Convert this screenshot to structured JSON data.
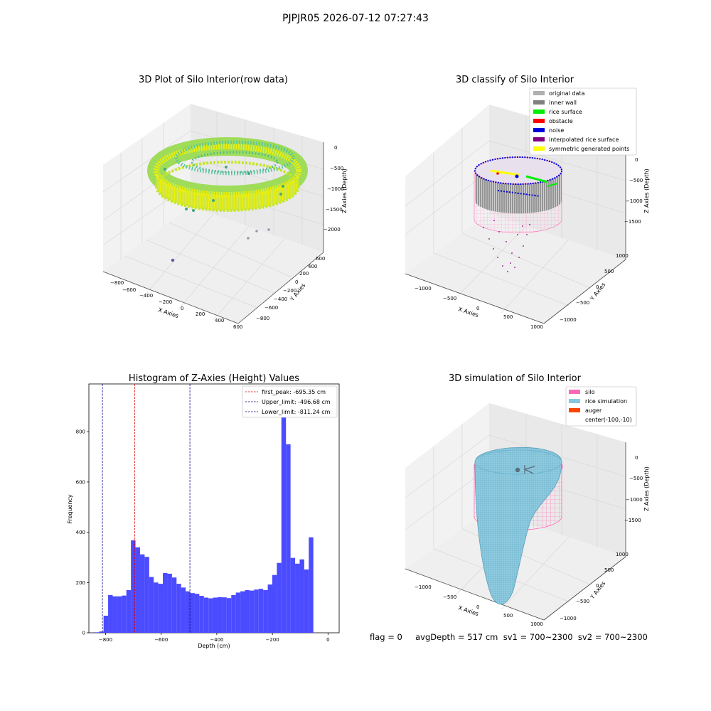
{
  "figure": {
    "suptitle": "PJPJR05 2026-07-12 07:27:43",
    "status_text": "flag = 0     avgDepth = 517 cm  sv1 = 700~2300  sv2 = 700~2300"
  },
  "colors": {
    "hist_bar": "#4b4bff",
    "first_peak": "#dd0000",
    "limits": "#00008b",
    "silo": "#ff69b4",
    "rice_sim": "#87c8e0",
    "auger": "#ff4500",
    "inner_wall": "#808080",
    "rice_surface": "#00ee00",
    "obstacle": "#ff0000",
    "noise": "#0000dd",
    "interpolated": "#800080",
    "symmetric": "#ffff00",
    "original": "#b0b0b0"
  },
  "chart_data": [
    {
      "type": "scatter",
      "title": "3D Plot of Silo Interior(row data)",
      "xlabel": "X Axies",
      "ylabel": "Y Axies",
      "zlabel": "Z Axies (Depth)",
      "x_ticks": [
        "−800",
        "−600",
        "−400",
        "−200",
        "0",
        "200",
        "400",
        "600"
      ],
      "y_ticks": [
        "600",
        "400",
        "200",
        "0",
        "−200",
        "−400",
        "−600",
        "−800"
      ],
      "z_ticks": [
        "0",
        "−500",
        "−1000",
        "−1500",
        "−2000"
      ],
      "xlim": [
        -800,
        600
      ],
      "ylim": [
        -800,
        600
      ],
      "zlim": [
        -2000,
        0
      ],
      "description": "ring of points colored by depth (viridis)"
    },
    {
      "type": "scatter",
      "title": "3D classify of Silo Interior",
      "xlabel": "X Axies",
      "ylabel": "Y Axies",
      "zlabel": "Z Axies (Depth)",
      "x_ticks": [
        "−1000",
        "−500",
        "0",
        "500",
        "1000"
      ],
      "y_ticks": [
        "1000",
        "500",
        "0",
        "−500",
        "−1000"
      ],
      "z_ticks": [
        "0",
        "−500",
        "−1000",
        "−1500"
      ],
      "legend": [
        {
          "label": "original data",
          "color": "#b0b0b0"
        },
        {
          "label": "inner wall",
          "color": "#808080"
        },
        {
          "label": "rice surface",
          "color": "#00ee00"
        },
        {
          "label": "obstacle",
          "color": "#ff0000"
        },
        {
          "label": "noise",
          "color": "#0000dd"
        },
        {
          "label": "interpolated rice surface",
          "color": "#800080"
        },
        {
          "label": "symmetric generated points",
          "color": "#ffff00"
        }
      ]
    },
    {
      "type": "bar",
      "title": "Histogram of Z-Axies (Height) Values",
      "xlabel": "Depth (cm)",
      "ylabel": "Frequency",
      "xlim": [
        -860,
        40
      ],
      "ylim": [
        0,
        990
      ],
      "x_ticks": [
        -800,
        -600,
        -400,
        -200,
        0
      ],
      "y_ticks": [
        0,
        200,
        400,
        600,
        800
      ],
      "bin_edges_start": -840,
      "bin_width": 16.4,
      "values": [
        2,
        5,
        68,
        150,
        145,
        145,
        148,
        170,
        368,
        340,
        312,
        302,
        222,
        200,
        195,
        238,
        235,
        220,
        195,
        180,
        165,
        158,
        155,
        147,
        140,
        137,
        140,
        142,
        141,
        138,
        150,
        160,
        165,
        170,
        168,
        172,
        175,
        170,
        192,
        230,
        278,
        935,
        750,
        298,
        275,
        292,
        252,
        380
      ],
      "vlines": [
        {
          "label": "first_peak: -695.35 cm",
          "x": -695.35,
          "color": "#dd0000"
        },
        {
          "label": "Upper_limit: -496.68 cm",
          "x": -496.68,
          "color": "#00008b"
        },
        {
          "label": "Lower_limit: -811.24 cm",
          "x": -811.24,
          "color": "#00008b"
        }
      ]
    },
    {
      "type": "area",
      "title": "3D simulation of Silo Interior",
      "xlabel": "X Axies",
      "ylabel": "Y Axies",
      "zlabel": "Z Axies (Depth)",
      "x_ticks": [
        "−1000",
        "−500",
        "0",
        "500",
        "1000"
      ],
      "y_ticks": [
        "1000",
        "500",
        "0",
        "−500",
        "−1000"
      ],
      "z_ticks": [
        "0",
        "−500",
        "−1000",
        "−1500"
      ],
      "legend": [
        {
          "label": "silo",
          "color": "#ff69b4"
        },
        {
          "label": "rice simulation",
          "color": "#87c8e0"
        },
        {
          "label": "auger",
          "color": "#ff4500"
        },
        {
          "label": "center(-100,-10)",
          "color": ""
        }
      ]
    }
  ]
}
